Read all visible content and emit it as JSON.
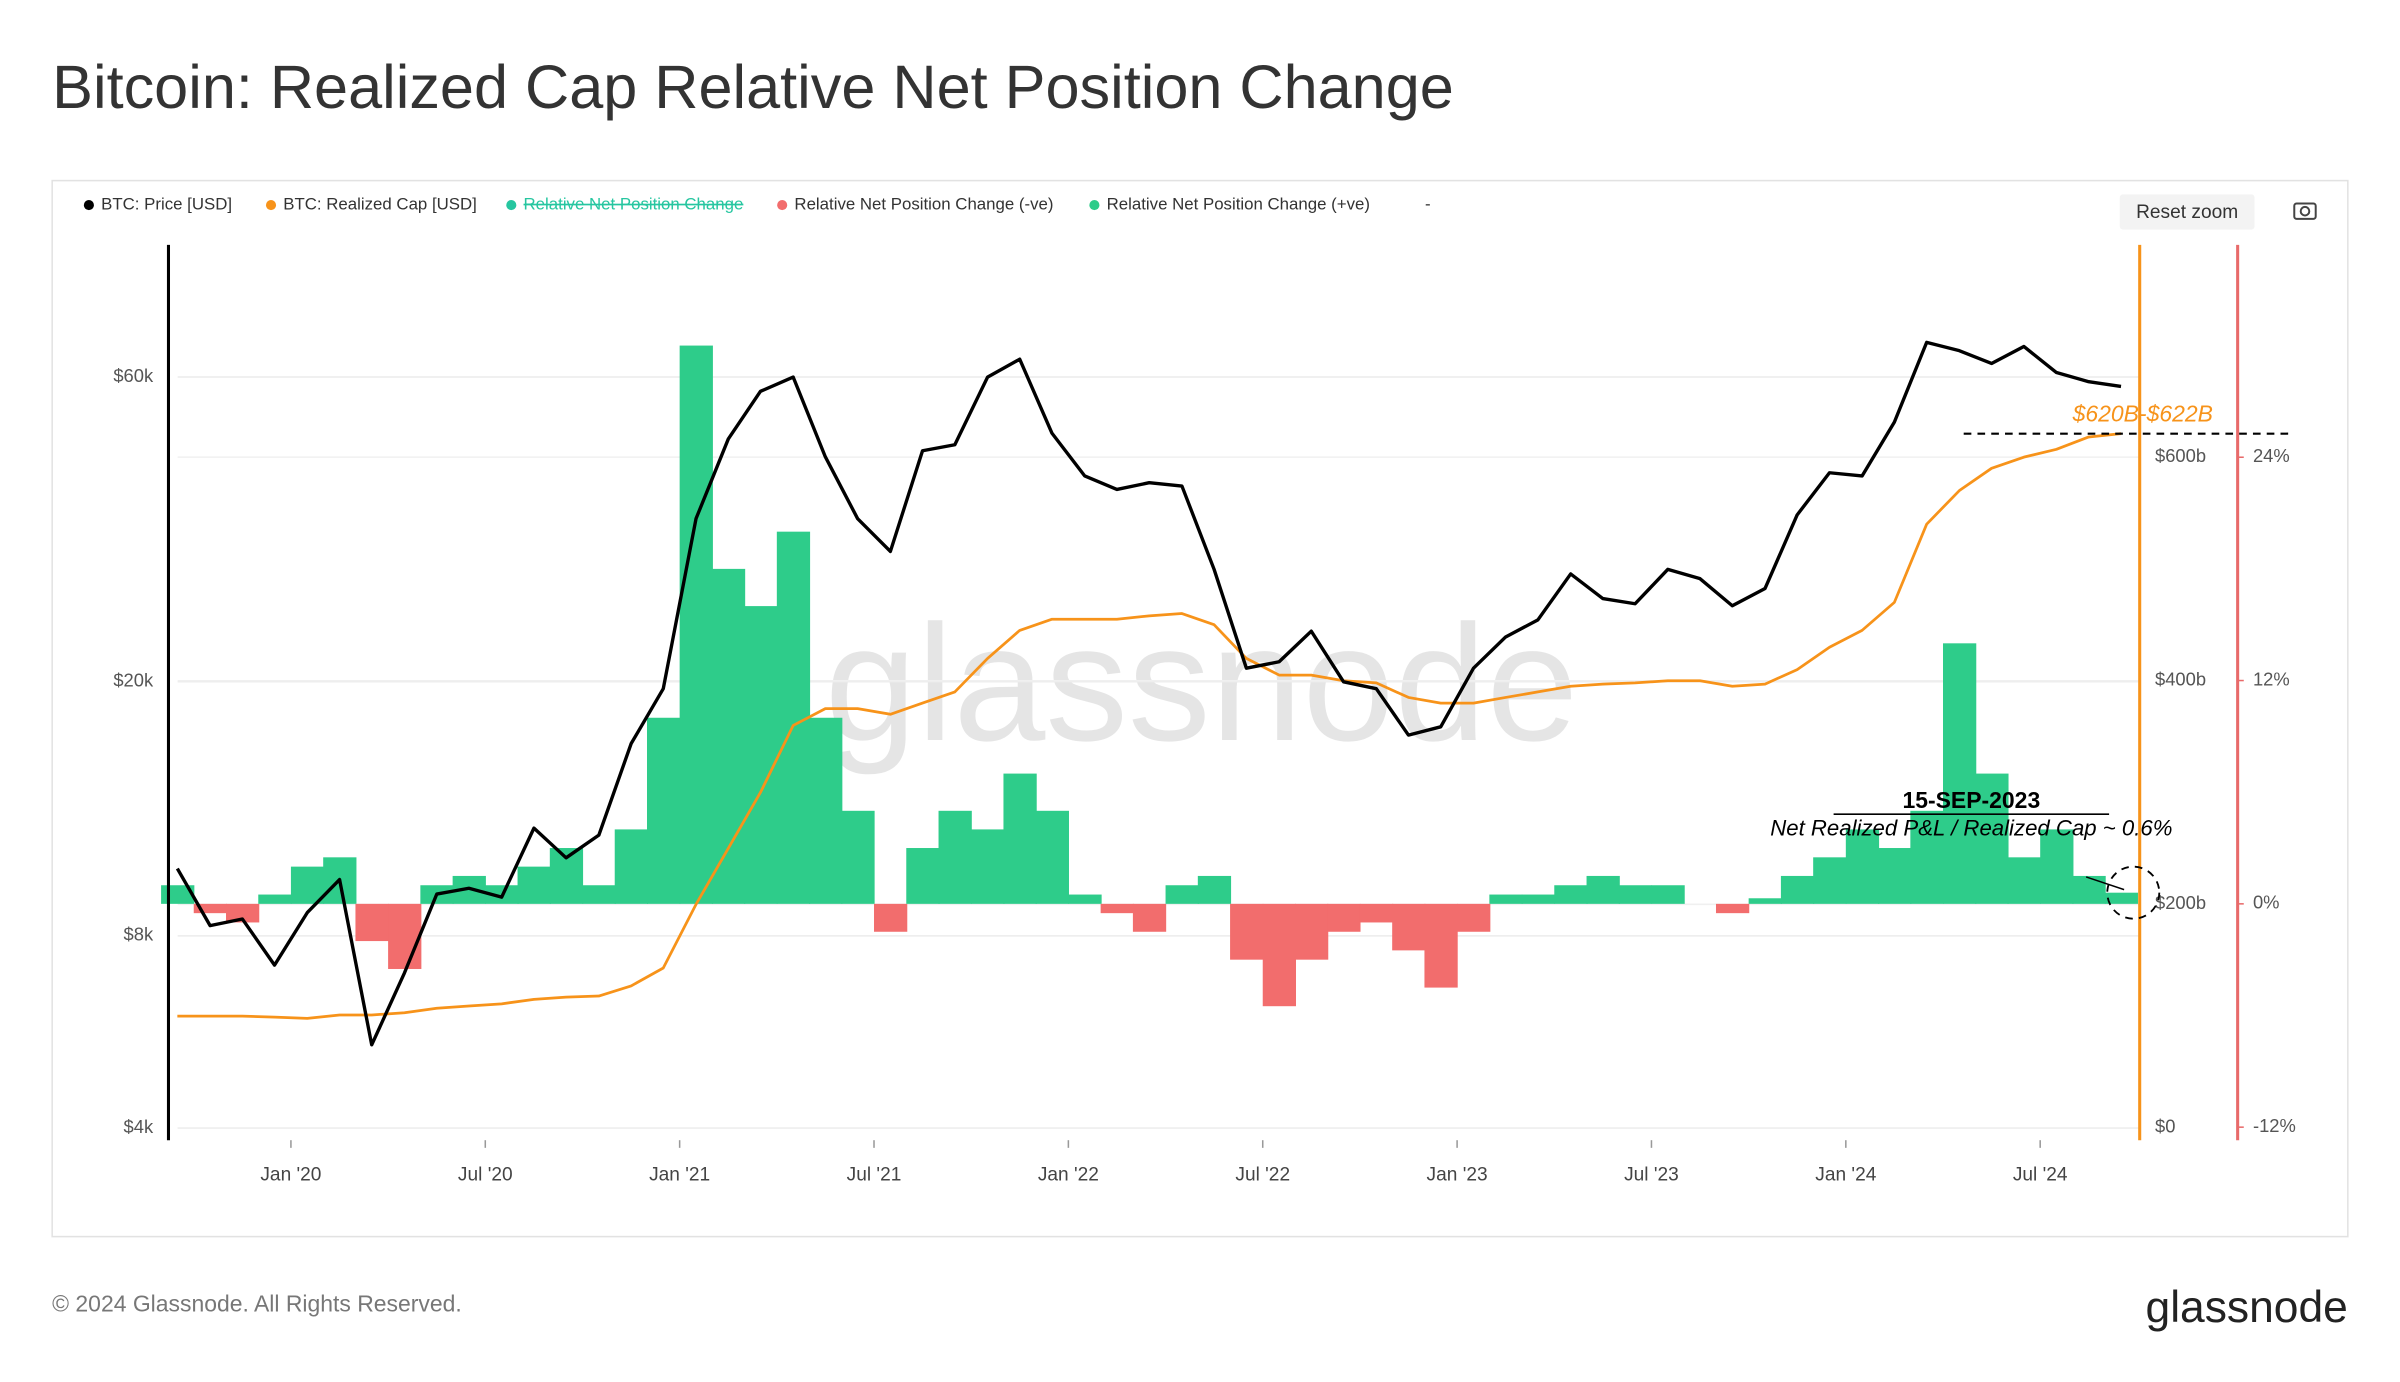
{
  "chart_data": {
    "type": "line",
    "title": "Bitcoin: Realized Cap Relative Net Position Change",
    "watermark": "glassnode",
    "footer": "© 2024 Glassnode. All Rights Reserved.",
    "logo": "glassnode",
    "reset_button": "Reset zoom",
    "xlim": [
      2019.685,
      2024.756
    ],
    "xticks": [
      {
        "value": 2020,
        "label": "Jan '20"
      },
      {
        "value": 2020.5,
        "label": "Jul '20"
      },
      {
        "value": 2021,
        "label": "Jan '21"
      },
      {
        "value": 2021.5,
        "label": "Jul '21"
      },
      {
        "value": 2022,
        "label": "Jan '22"
      },
      {
        "value": 2022.5,
        "label": "Jul '22"
      },
      {
        "value": 2023,
        "label": "Jan '23"
      },
      {
        "value": 2023.5,
        "label": "Jul '23"
      },
      {
        "value": 2024,
        "label": "Jan '24"
      },
      {
        "value": 2024.5,
        "label": "Jul '24"
      }
    ],
    "yscale": "log",
    "ylim": [
      3830,
      94000
    ],
    "yticks": [
      {
        "value": 4000,
        "label": "$4k"
      },
      {
        "value": 8000,
        "label": "$8k"
      },
      {
        "value": 20000,
        "label": "$20k"
      },
      {
        "value": 60000,
        "label": "$60k"
      }
    ],
    "y2lim": [
      -11,
      783
    ],
    "y2ticks": [
      {
        "value": 0,
        "label": "$0"
      },
      {
        "value": 200,
        "label": "$200b"
      },
      {
        "value": 400,
        "label": "$400b"
      },
      {
        "value": 600,
        "label": "$600b"
      }
    ],
    "y3lim": [
      -12.7,
      35
    ],
    "y3ticks": [
      {
        "value": -12,
        "label": "-12%"
      },
      {
        "value": 0,
        "label": "0%"
      },
      {
        "value": 12,
        "label": "12%"
      },
      {
        "value": 24,
        "label": "24%"
      }
    ],
    "grid": true,
    "x": [
      2019.708,
      2019.792,
      2019.875,
      2019.958,
      2020.042,
      2020.125,
      2020.208,
      2020.292,
      2020.375,
      2020.458,
      2020.542,
      2020.625,
      2020.708,
      2020.792,
      2020.875,
      2020.958,
      2021.042,
      2021.125,
      2021.208,
      2021.292,
      2021.375,
      2021.458,
      2021.542,
      2021.625,
      2021.708,
      2021.792,
      2021.875,
      2021.958,
      2022.042,
      2022.125,
      2022.208,
      2022.292,
      2022.375,
      2022.458,
      2022.542,
      2022.625,
      2022.708,
      2022.792,
      2022.875,
      2022.958,
      2023.042,
      2023.125,
      2023.208,
      2023.292,
      2023.375,
      2023.458,
      2023.542,
      2023.625,
      2023.708,
      2023.792,
      2023.875,
      2023.958,
      2024.042,
      2024.125,
      2024.208,
      2024.292,
      2024.375,
      2024.458,
      2024.542,
      2024.625,
      2024.708
    ],
    "series": [
      {
        "name": "BTC: Price [USD]",
        "color": "#000000",
        "axis": "y",
        "type": "line",
        "values": [
          10200,
          8300,
          8500,
          7200,
          8700,
          9800,
          5400,
          7000,
          9300,
          9500,
          9200,
          11800,
          10600,
          11500,
          16000,
          19500,
          36000,
          48000,
          57000,
          60000,
          45000,
          36000,
          32000,
          46000,
          47000,
          60000,
          64000,
          49000,
          42000,
          40000,
          41000,
          40500,
          30000,
          21000,
          21500,
          24000,
          20000,
          19500,
          16500,
          17000,
          21000,
          23500,
          25000,
          29500,
          27000,
          26500,
          30000,
          29000,
          26300,
          28000,
          36500,
          42500,
          42000,
          51000,
          68000,
          66000,
          63000,
          67000,
          61000,
          59000,
          58000
        ]
      },
      {
        "name": "BTC: Realized Cap [USD]",
        "color": "#f7931a",
        "axis": "y2",
        "type": "line",
        "values": [
          100,
          100,
          100,
          99,
          98,
          101,
          101,
          103,
          107,
          109,
          111,
          115,
          117,
          118,
          127,
          143,
          200,
          250,
          300,
          360,
          375,
          375,
          370,
          380,
          390,
          420,
          445,
          455,
          455,
          455,
          458,
          460,
          450,
          420,
          405,
          405,
          400,
          398,
          385,
          380,
          380,
          385,
          390,
          395,
          397,
          398,
          400,
          400,
          395,
          397,
          410,
          430,
          445,
          470,
          540,
          570,
          590,
          600,
          607,
          618,
          621
        ]
      },
      {
        "name": "Relative Net Position Change",
        "color": "#26c6a0",
        "axis": "y3",
        "type": "bar",
        "legend_struck": true,
        "sign_names": [
          "Relative Net Position Change (-ve)",
          "Relative Net Position Change (+ve)"
        ],
        "sign_colors": [
          "#f26d6d",
          "#2ecc8a"
        ],
        "values": [
          1,
          -0.5,
          -1,
          0.5,
          2,
          2.5,
          -2,
          -3.5,
          1,
          1.5,
          1,
          2,
          3,
          1,
          4,
          10,
          30,
          18,
          16,
          20,
          10,
          5,
          -1.5,
          3,
          5,
          4,
          7,
          5,
          0.5,
          -0.5,
          -1.5,
          1,
          1.5,
          -3,
          -5.5,
          -3,
          -1.5,
          -1,
          -2.5,
          -4.5,
          -1.5,
          0.5,
          0.5,
          1,
          1.5,
          1,
          1,
          0,
          -0.5,
          0.3,
          1.5,
          2.5,
          4,
          3,
          5,
          14,
          7,
          2.5,
          4,
          1.5,
          0.6
        ]
      }
    ],
    "legend_extra": "-",
    "annotations": {
      "cap_range": "$620B-$622B",
      "date": "15-SEP-2023",
      "note": "Net Realized P&L / Realized Cap ~ 0.6%"
    }
  }
}
